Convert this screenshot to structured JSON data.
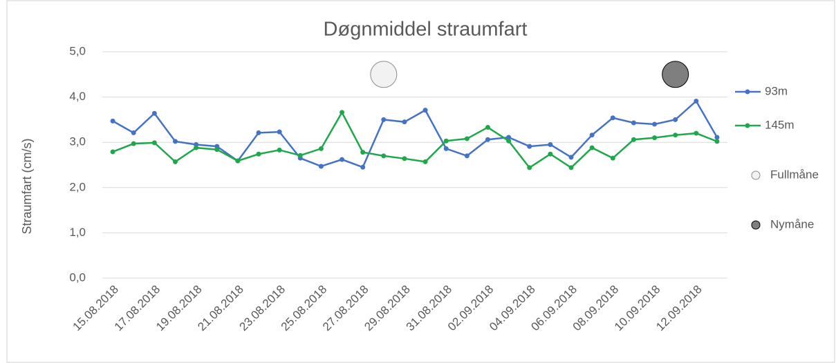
{
  "chart_data": {
    "type": "line",
    "title": "Døgnmiddel straumfart",
    "y_label": "Straumfart (cm/s)",
    "categories": [
      "15.08.2018",
      null,
      "17.08.2018",
      null,
      "19.08.2018",
      null,
      "21.08.2018",
      null,
      "23.08.2018",
      null,
      "25.08.2018",
      null,
      "27.08.2018",
      null,
      "29.08.2018",
      null,
      "31.08.2018",
      null,
      "02.09.2018",
      null,
      "04.09.2018",
      null,
      "06.09.2018",
      null,
      "08.09.2018",
      null,
      "10.09.2018",
      null,
      "12.09.2018",
      null
    ],
    "series": [
      {
        "name": "93m",
        "color": "#4472c4",
        "style": "line",
        "values": [
          3.47,
          3.21,
          3.64,
          3.02,
          2.95,
          2.91,
          2.59,
          3.21,
          3.23,
          2.65,
          2.47,
          2.62,
          2.45,
          3.5,
          3.45,
          3.71,
          2.86,
          2.7,
          3.06,
          3.11,
          2.91,
          2.95,
          2.67,
          3.16,
          3.54,
          3.43,
          3.4,
          3.5,
          3.91,
          3.11
        ]
      },
      {
        "name": "145m",
        "color": "#1fa84b",
        "style": "line",
        "values": [
          2.79,
          2.97,
          2.99,
          2.57,
          2.88,
          2.84,
          2.59,
          2.74,
          2.83,
          2.71,
          2.86,
          3.66,
          2.78,
          2.7,
          2.64,
          2.57,
          3.03,
          3.08,
          3.33,
          3.03,
          2.44,
          2.74,
          2.44,
          2.88,
          2.65,
          3.06,
          3.1,
          3.16,
          3.2,
          3.02
        ]
      },
      {
        "name": "Fullmåne",
        "color": "#f2f2f2",
        "style": "marker",
        "values": [
          null,
          null,
          null,
          null,
          null,
          null,
          null,
          null,
          null,
          null,
          null,
          null,
          null,
          4.5,
          null,
          null,
          null,
          null,
          null,
          null,
          null,
          null,
          null,
          null,
          null,
          null,
          null,
          null,
          null,
          null
        ]
      },
      {
        "name": "Nymåne",
        "color": "#7f7f7f",
        "style": "marker",
        "values": [
          null,
          null,
          null,
          null,
          null,
          null,
          null,
          null,
          null,
          null,
          null,
          null,
          null,
          null,
          null,
          null,
          null,
          null,
          null,
          null,
          null,
          null,
          null,
          null,
          null,
          null,
          null,
          4.5,
          null,
          null
        ]
      }
    ],
    "ylim": [
      0,
      5
    ],
    "yticks": [
      {
        "value": 0,
        "label": "0,0"
      },
      {
        "value": 1,
        "label": "1,0"
      },
      {
        "value": 2,
        "label": "2,0"
      },
      {
        "value": 3,
        "label": "3,0"
      },
      {
        "value": 4,
        "label": "4,0"
      },
      {
        "value": 5,
        "label": "5,0"
      }
    ],
    "grid": true,
    "legend": "right"
  }
}
